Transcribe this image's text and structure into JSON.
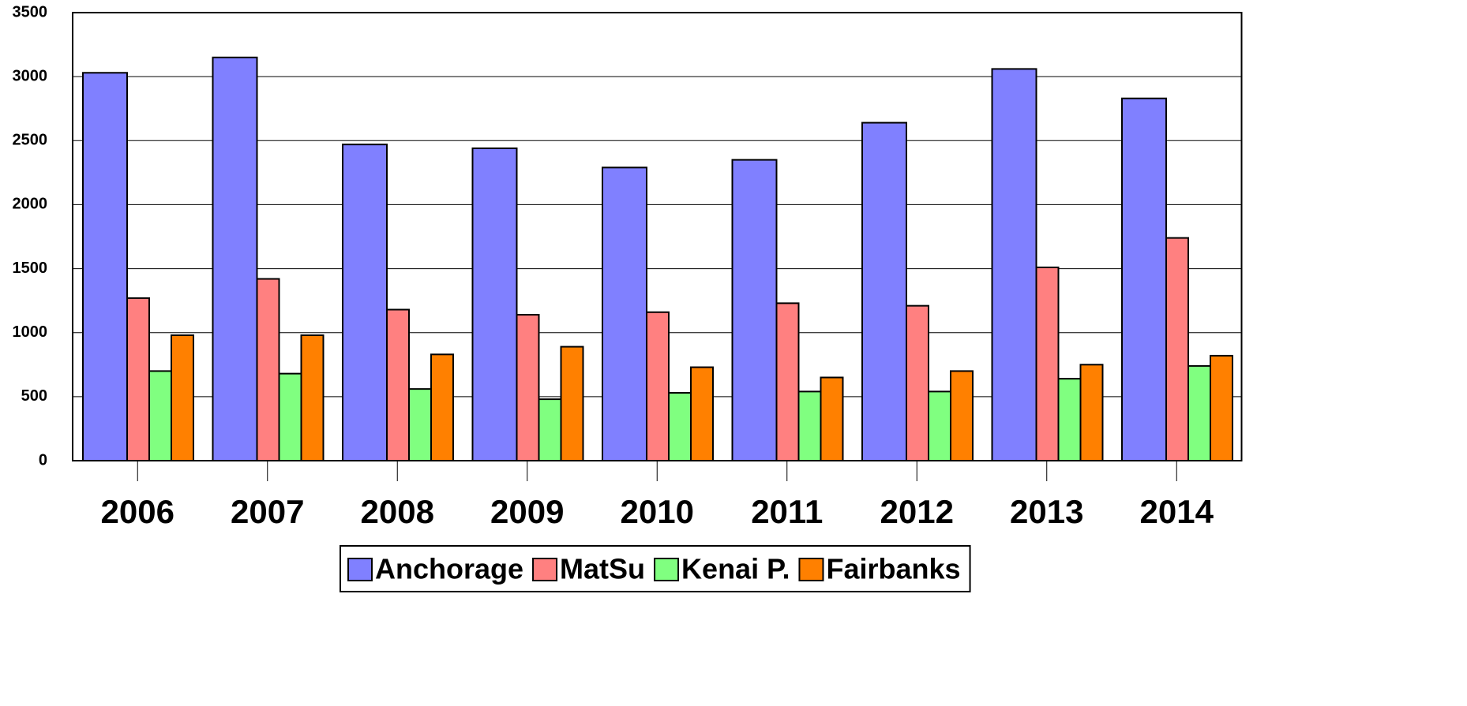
{
  "chart_data": {
    "type": "bar",
    "categories": [
      "2006",
      "2007",
      "2008",
      "2009",
      "2010",
      "2011",
      "2012",
      "2013",
      "2014"
    ],
    "series": [
      {
        "name": "Anchorage",
        "color": "#8080ff",
        "values": [
          3030,
          3150,
          2470,
          2440,
          2290,
          2350,
          2640,
          3060,
          2830
        ]
      },
      {
        "name": "MatSu",
        "color": "#ff8080",
        "values": [
          1270,
          1420,
          1180,
          1140,
          1160,
          1230,
          1210,
          1510,
          1740
        ]
      },
      {
        "name": "Kenai P.",
        "color": "#80ff80",
        "values": [
          700,
          680,
          560,
          480,
          530,
          540,
          540,
          640,
          740
        ]
      },
      {
        "name": "Fairbanks",
        "color": "#ff8000",
        "values": [
          980,
          980,
          830,
          890,
          730,
          650,
          700,
          750,
          820
        ]
      }
    ],
    "ylim": [
      0,
      3500
    ],
    "yticks": [
      0,
      500,
      1000,
      1500,
      2000,
      2500,
      3000,
      3500
    ],
    "grid": true,
    "legend": "bottom"
  }
}
